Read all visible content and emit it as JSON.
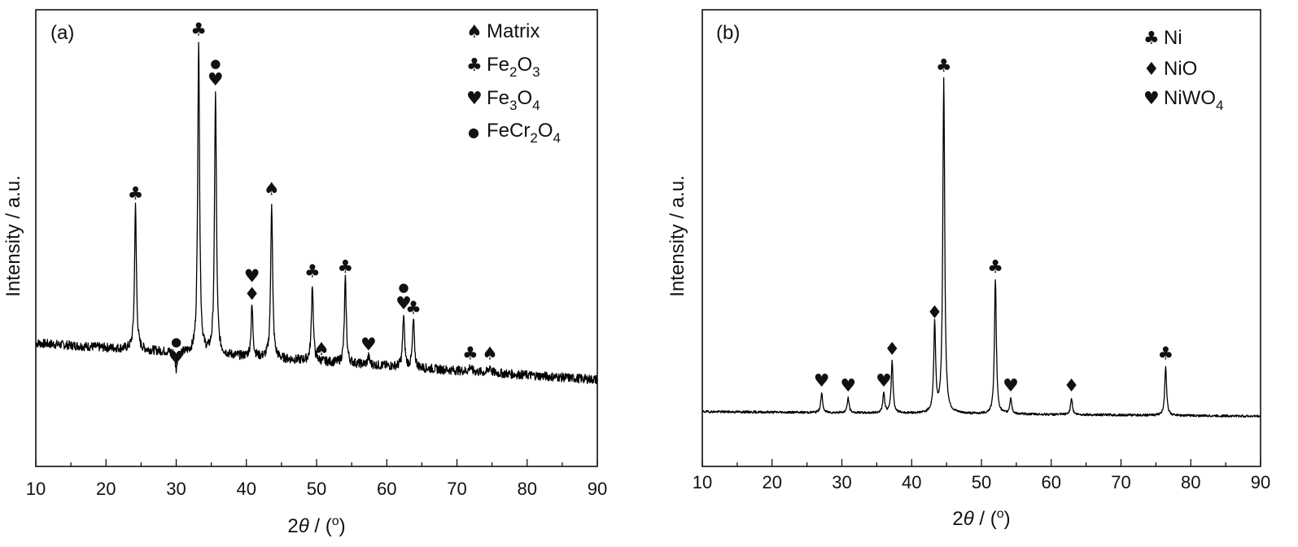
{
  "figure": {
    "panels": [
      {
        "panel_label": "(a)",
        "ylabel": "Intensity / a.u.",
        "xlabel_theta": "θ",
        "xlabel_prefix": "2",
        "xlabel_unit": " / (",
        "xlabel_deg": "o",
        "xlabel_close": ")",
        "xticks": [
          "10",
          "20",
          "30",
          "40",
          "50",
          "60",
          "70",
          "80",
          "90"
        ],
        "legend": [
          {
            "symbol": "♠",
            "label": "Matrix",
            "sub1": "",
            "mid": "",
            "sub2": ""
          },
          {
            "symbol": "♣",
            "label": "Fe",
            "sub1": "2",
            "mid": "O",
            "sub2": "3"
          },
          {
            "symbol": "♥",
            "label": "Fe",
            "sub1": "3",
            "mid": "O",
            "sub2": "4"
          },
          {
            "symbol": "●",
            "label": "FeCr",
            "sub1": "2",
            "mid": "O",
            "sub2": "4"
          }
        ]
      },
      {
        "panel_label": "(b)",
        "ylabel": "Intensity / a.u.",
        "xlabel_theta": "θ",
        "xlabel_prefix": "2",
        "xlabel_unit": " / (",
        "xlabel_deg": "o",
        "xlabel_close": ")",
        "xticks": [
          "10",
          "20",
          "30",
          "40",
          "50",
          "60",
          "70",
          "80",
          "90"
        ],
        "legend": [
          {
            "symbol": "♣",
            "label": "Ni",
            "sub1": "",
            "mid": "",
            "sub2": ""
          },
          {
            "symbol": "♦",
            "label": "NiO",
            "sub1": "",
            "mid": "",
            "sub2": ""
          },
          {
            "symbol": "♥",
            "label": "NiWO",
            "sub1": "4",
            "mid": "",
            "sub2": ""
          }
        ]
      }
    ]
  },
  "chart_data": [
    {
      "type": "line",
      "panel": "(a)",
      "xlabel": "2θ / (o)",
      "ylabel": "Intensity / a.u.",
      "xlim": [
        10,
        90
      ],
      "ylim": [
        0,
        100
      ],
      "yticks_shown": false,
      "grid": false,
      "legend_position": "top-right",
      "background": {
        "start": [
          10,
          27
        ],
        "end": [
          90,
          19
        ]
      },
      "peaks": [
        {
          "x": 24.2,
          "y": 57,
          "marker": "♣"
        },
        {
          "x": 30.0,
          "y": 21,
          "marker": "●♥"
        },
        {
          "x": 33.2,
          "y": 93,
          "marker": "♣"
        },
        {
          "x": 35.6,
          "y": 82,
          "marker": "●♥"
        },
        {
          "x": 40.8,
          "y": 35,
          "marker": "♥♦"
        },
        {
          "x": 43.6,
          "y": 58,
          "marker": "♠"
        },
        {
          "x": 49.4,
          "y": 40,
          "marker": "♣"
        },
        {
          "x": 50.7,
          "y": 23,
          "marker": "♠"
        },
        {
          "x": 54.1,
          "y": 41,
          "marker": "♣"
        },
        {
          "x": 57.4,
          "y": 24,
          "marker": "♥"
        },
        {
          "x": 62.4,
          "y": 33,
          "marker": "●♥"
        },
        {
          "x": 63.8,
          "y": 32,
          "marker": "♣"
        },
        {
          "x": 71.9,
          "y": 22,
          "marker": "♣"
        },
        {
          "x": 74.7,
          "y": 22,
          "marker": "♠"
        }
      ],
      "series": [
        {
          "name": "",
          "color": "#000000"
        }
      ]
    },
    {
      "type": "line",
      "panel": "(b)",
      "xlabel": "2θ / (o)",
      "ylabel": "Intensity / a.u.",
      "xlim": [
        10,
        90
      ],
      "ylim": [
        0,
        100
      ],
      "yticks_shown": false,
      "grid": false,
      "legend_position": "top-right",
      "background": {
        "start": [
          10,
          12
        ],
        "end": [
          90,
          11
        ]
      },
      "peaks": [
        {
          "x": 27.1,
          "y": 16,
          "marker": "♥"
        },
        {
          "x": 30.9,
          "y": 15,
          "marker": "♥"
        },
        {
          "x": 36.0,
          "y": 16,
          "marker": "♥"
        },
        {
          "x": 37.2,
          "y": 23,
          "marker": "♦"
        },
        {
          "x": 43.3,
          "y": 31,
          "marker": "♦"
        },
        {
          "x": 44.6,
          "y": 85,
          "marker": "♣"
        },
        {
          "x": 52.0,
          "y": 41,
          "marker": "♣"
        },
        {
          "x": 54.2,
          "y": 15,
          "marker": "♥"
        },
        {
          "x": 62.9,
          "y": 15,
          "marker": "♦"
        },
        {
          "x": 76.4,
          "y": 22,
          "marker": "♣"
        }
      ],
      "series": [
        {
          "name": "",
          "color": "#000000"
        }
      ]
    }
  ]
}
